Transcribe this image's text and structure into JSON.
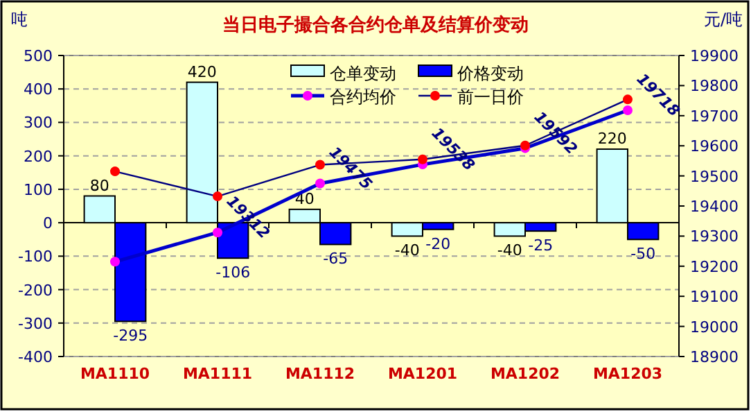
{
  "chart_data": {
    "type": "bar",
    "title": "当日电子撮合各合约仓单及结算价变动",
    "ylabel": "吨",
    "y2label": "元/吨",
    "categories": [
      "MA1110",
      "MA1111",
      "MA1112",
      "MA1201",
      "MA1202",
      "MA1203"
    ],
    "series": [
      {
        "name": "仓单变动",
        "color": "#ccffff",
        "values": [
          80,
          420,
          40,
          -40,
          -40,
          220
        ],
        "data_labels": true
      },
      {
        "name": "价格变动",
        "color": "#0000ff",
        "values": [
          -295,
          -106,
          -65,
          -20,
          -25,
          -50
        ],
        "data_labels": true
      },
      {
        "name": "合约均价",
        "type": "line",
        "axis": "y2",
        "color": "#0000cc",
        "colors": [
          "#ff00ff",
          "#ff00ff",
          "#ff00ff",
          "#ff00ff",
          "#ff00ff",
          "#ff00ff"
        ],
        "values": [
          19215,
          19312,
          19475,
          19538,
          19592,
          19718
        ],
        "value_labels": [
          null,
          "19312",
          "19475",
          "19538",
          "19592",
          "19718"
        ]
      },
      {
        "name": "前一日价",
        "type": "line",
        "axis": "y2",
        "color": "#000080",
        "colors": [
          "#ff0000",
          "#ff0000",
          "#ff0000",
          "#ff0000",
          "#ff0000",
          "#ff0000"
        ],
        "values": [
          19515,
          19432,
          19537,
          19555,
          19601,
          19754
        ]
      }
    ],
    "ylim": [
      -400,
      500
    ],
    "yticks": [
      -400,
      -300,
      -200,
      -100,
      0,
      100,
      200,
      300,
      400,
      500
    ],
    "y2lim": [
      18900,
      19900
    ],
    "y2ticks": [
      18900,
      19000,
      19100,
      19200,
      19300,
      19400,
      19500,
      19600,
      19700,
      19800,
      19900
    ],
    "grid": "y",
    "legend": "top",
    "marker": "circle",
    "line_style": "solid"
  }
}
